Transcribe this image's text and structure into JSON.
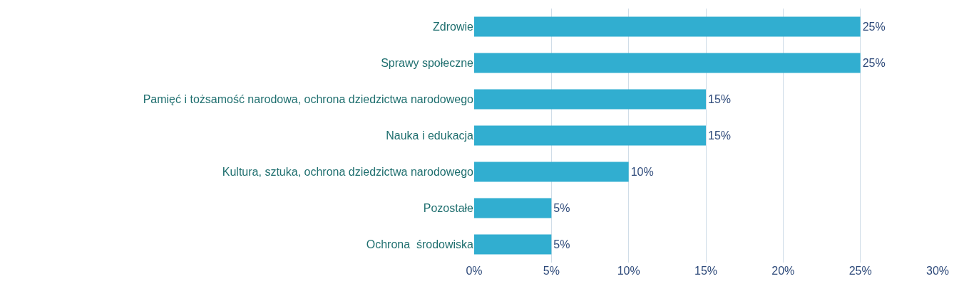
{
  "chart_data": {
    "type": "bar",
    "orientation": "horizontal",
    "categories": [
      "Zdrowie",
      "Sprawy społeczne",
      "Pamięć i tożsamość narodowa, ochrona dziedzictwa narodowego",
      "Nauka i edukacja",
      "Kultura, sztuka, ochrona dziedzictwa narodowego",
      "Pozostałe",
      "Ochrona  środowiska"
    ],
    "values": [
      25,
      25,
      15,
      15,
      10,
      5,
      5
    ],
    "value_labels": [
      "25%",
      "25%",
      "15%",
      "15%",
      "10%",
      "5%",
      "5%"
    ],
    "color": "#31aed0",
    "xlim": [
      0,
      30
    ],
    "xticks": [
      {
        "value": 0,
        "label": "0%"
      },
      {
        "value": 5,
        "label": "5%"
      },
      {
        "value": 10,
        "label": "10%"
      },
      {
        "value": 15,
        "label": "15%"
      },
      {
        "value": 20,
        "label": "20%"
      },
      {
        "value": 25,
        "label": "25%"
      },
      {
        "value": 30,
        "label": "30%"
      }
    ],
    "grid": "x",
    "legend": false
  }
}
